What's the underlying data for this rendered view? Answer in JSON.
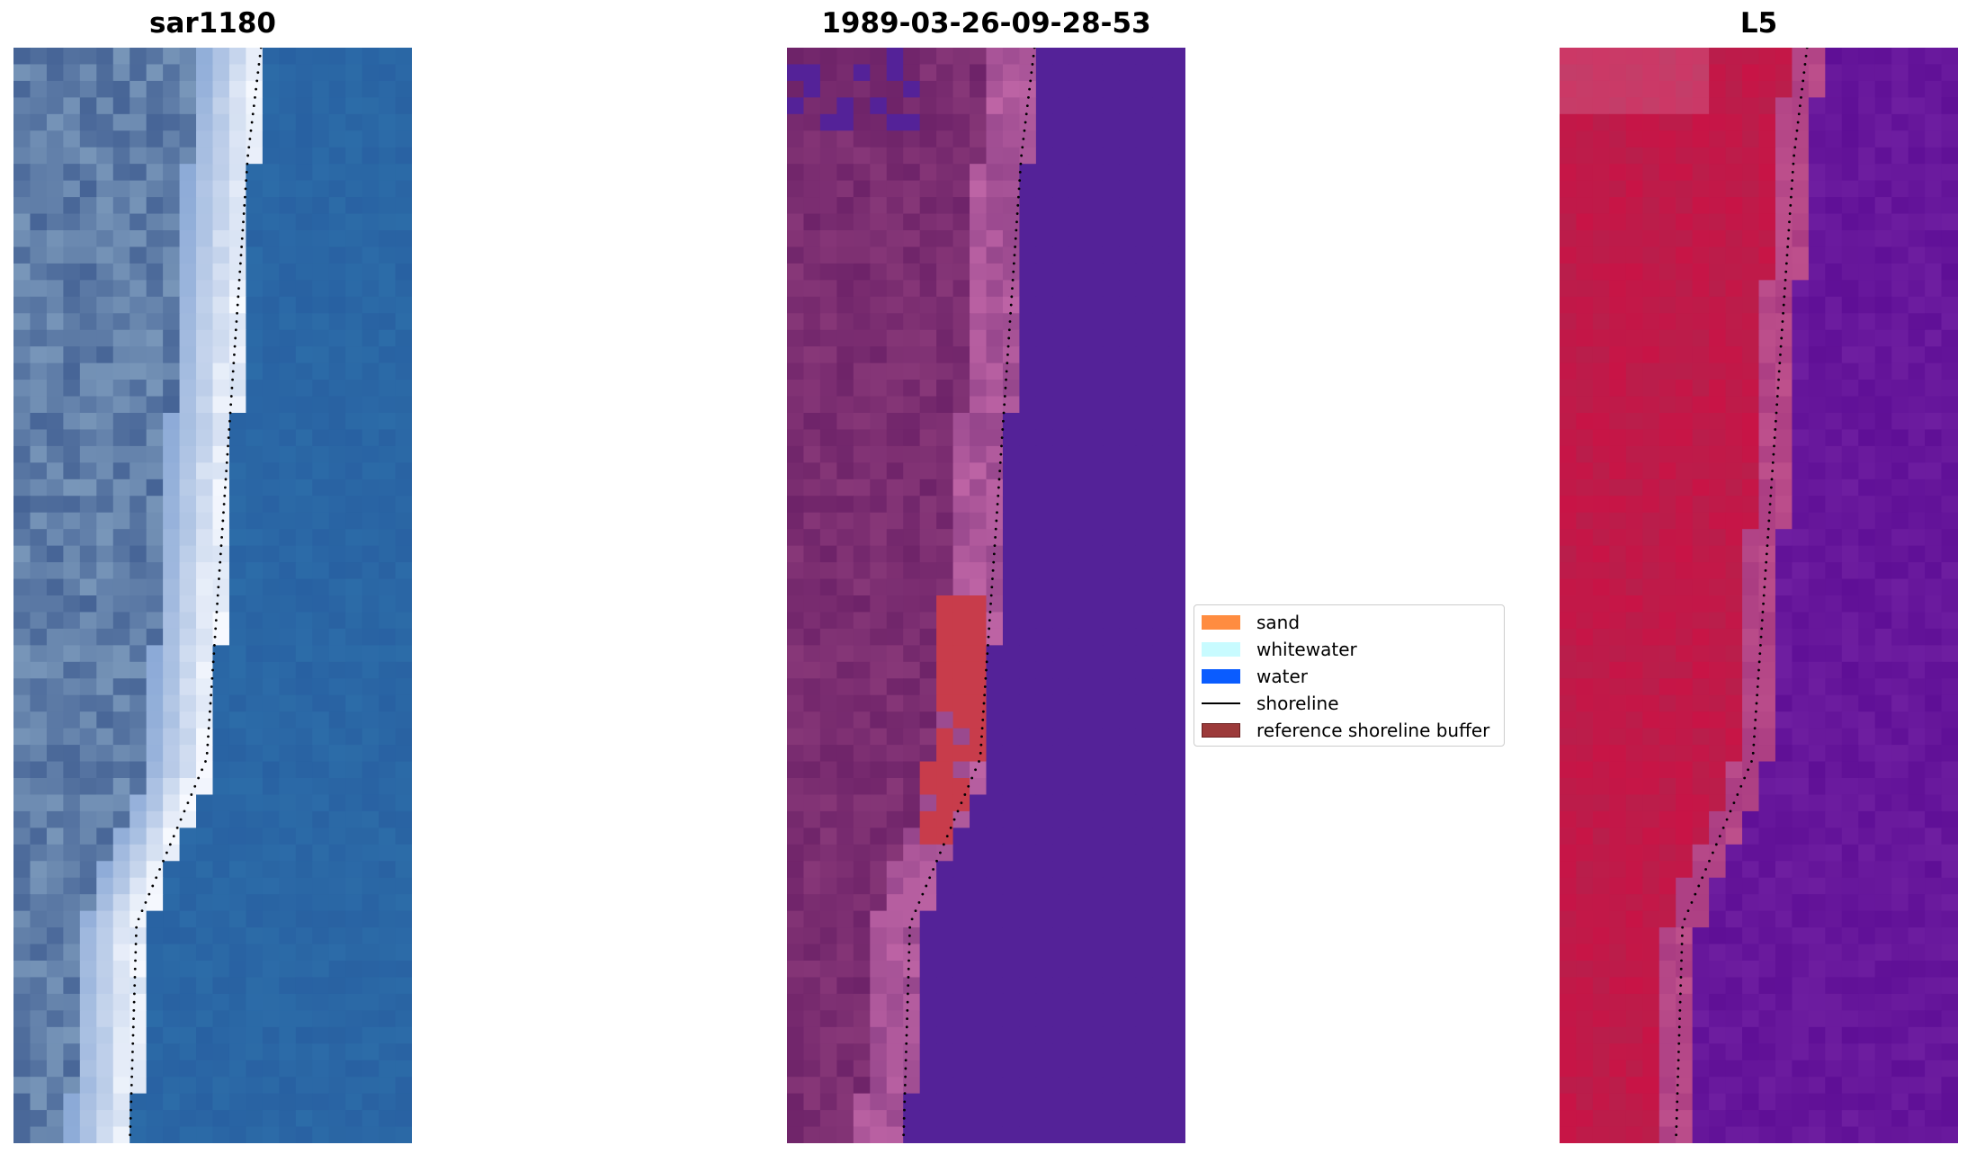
{
  "panels": [
    {
      "id": "rgb",
      "title": "sar1180"
    },
    {
      "id": "classified",
      "title": "1989-03-26-09-28-53"
    },
    {
      "id": "index",
      "title": "L5"
    }
  ],
  "legend": {
    "items": [
      {
        "label": "sand",
        "color": "#ff8c40",
        "kind": "patch"
      },
      {
        "label": "whitewater",
        "color": "#c8fbff",
        "kind": "patch"
      },
      {
        "label": "water",
        "color": "#0a5cff",
        "kind": "patch"
      },
      {
        "label": "shoreline",
        "color": "#000000",
        "kind": "line"
      },
      {
        "label": "reference shoreline buffer",
        "color": "#9c3a3a",
        "kind": "patch"
      }
    ]
  },
  "colors": {
    "water_rgb": "#2a6aa6",
    "surf_white": "#f4f8ff",
    "land_rgb": "#4a6a98",
    "classified_water": "#54209a",
    "classified_land": "#7a2a6e",
    "classified_beach": "#b85a98",
    "buffer_red": "#c8404a",
    "index_red": "#c41040",
    "index_purple": "#6a1a9a"
  }
}
